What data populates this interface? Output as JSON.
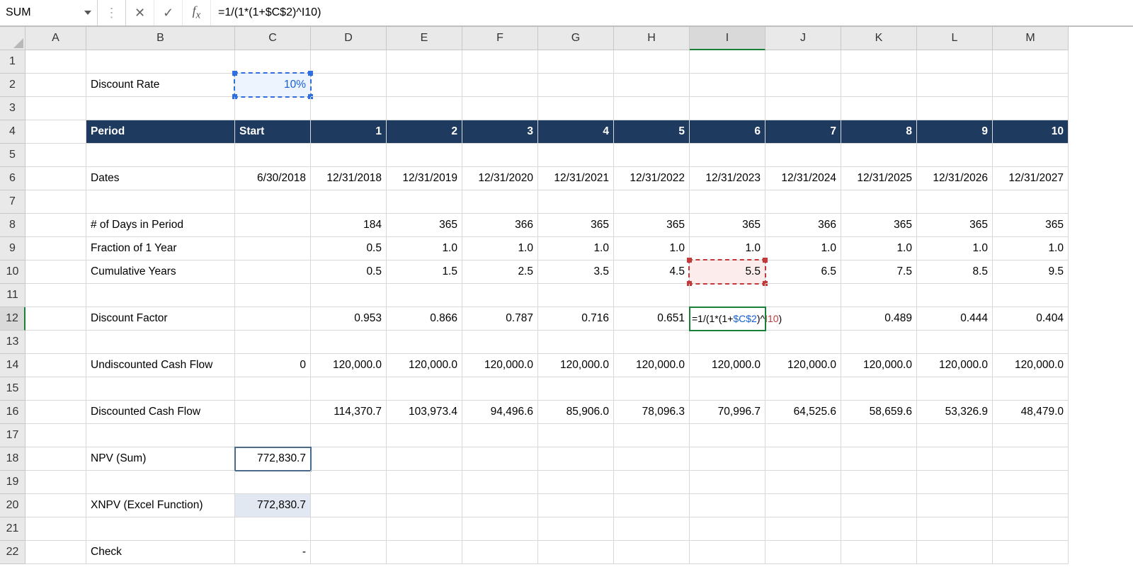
{
  "formula_bar": {
    "name_box": "SUM",
    "formula_plain": "=1/(1*(1+$C$2)^I10)",
    "formula_parts": {
      "p1": "=1/(1*(1+",
      "ref1": "$C$2",
      "p2": ")^",
      "ref2": "I10",
      "p3": ")"
    }
  },
  "columns": [
    "A",
    "B",
    "C",
    "D",
    "E",
    "F",
    "G",
    "H",
    "I",
    "J",
    "K",
    "L",
    "M"
  ],
  "row_numbers": [
    "1",
    "2",
    "3",
    "4",
    "5",
    "6",
    "7",
    "8",
    "9",
    "10",
    "11",
    "12",
    "13",
    "14",
    "15",
    "16",
    "17",
    "18",
    "19",
    "20",
    "21",
    "22"
  ],
  "active_col_index": 8,
  "active_row_index": 11,
  "colors": {
    "header_bg": "#e9e9e9",
    "grid_line": "#d8d8d8",
    "band_bg": "#1f3a5f",
    "band_fg": "#ffffff",
    "ref_blue": "#2f6fe0",
    "ref_blue_fill": "#eef4fe",
    "ref_red": "#c23a3a",
    "ref_red_fill": "#fcecec",
    "active_green": "#1a7f37",
    "npv_outline": "#4a6a8a",
    "xnpv_fill": "#e2e8f2"
  },
  "labels": {
    "discount_rate": "Discount Rate",
    "period": "Period",
    "start": "Start",
    "dates": "Dates",
    "days": "# of Days in Period",
    "fraction": "Fraction of 1 Year",
    "cum_years": "Cumulative Years",
    "disc_factor": "Discount Factor",
    "undisc_cf": "Undiscounted Cash Flow",
    "disc_cf": "Discounted Cash Flow",
    "npv": "NPV (Sum)",
    "xnpv": "XNPV (Excel Function)",
    "check": "Check"
  },
  "values": {
    "discount_rate": "10%",
    "periods": [
      "1",
      "2",
      "3",
      "4",
      "5",
      "6",
      "7",
      "8",
      "9",
      "10"
    ],
    "start_date": "6/30/2018",
    "dates": [
      "12/31/2018",
      "12/31/2019",
      "12/31/2020",
      "12/31/2021",
      "12/31/2022",
      "12/31/2023",
      "12/31/2024",
      "12/31/2025",
      "12/31/2026",
      "12/31/2027"
    ],
    "days": [
      "184",
      "365",
      "366",
      "365",
      "365",
      "365",
      "366",
      "365",
      "365",
      "365"
    ],
    "fraction": [
      "0.5",
      "1.0",
      "1.0",
      "1.0",
      "1.0",
      "1.0",
      "1.0",
      "1.0",
      "1.0",
      "1.0"
    ],
    "cum_years": [
      "0.5",
      "1.5",
      "2.5",
      "3.5",
      "4.5",
      "5.5",
      "6.5",
      "7.5",
      "8.5",
      "9.5"
    ],
    "disc_factor": [
      "0.953",
      "0.866",
      "0.787",
      "0.716",
      "0.651",
      "",
      "",
      "0.489",
      "0.444",
      "0.404"
    ],
    "undisc_cf_start": "0",
    "undisc_cf": [
      "120,000.0",
      "120,000.0",
      "120,000.0",
      "120,000.0",
      "120,000.0",
      "120,000.0",
      "120,000.0",
      "120,000.0",
      "120,000.0",
      "120,000.0"
    ],
    "disc_cf": [
      "114,370.7",
      "103,973.4",
      "94,496.6",
      "85,906.0",
      "78,096.3",
      "70,996.7",
      "64,525.6",
      "58,659.6",
      "53,326.9",
      "48,479.0"
    ],
    "npv": "772,830.7",
    "xnpv": "772,830.7",
    "check": "-"
  },
  "editing_cell": {
    "p1": "=1/(1*(1+",
    "ref1": "$C$2",
    "p2": ")^",
    "ref2": "I10",
    "p3": ")"
  }
}
